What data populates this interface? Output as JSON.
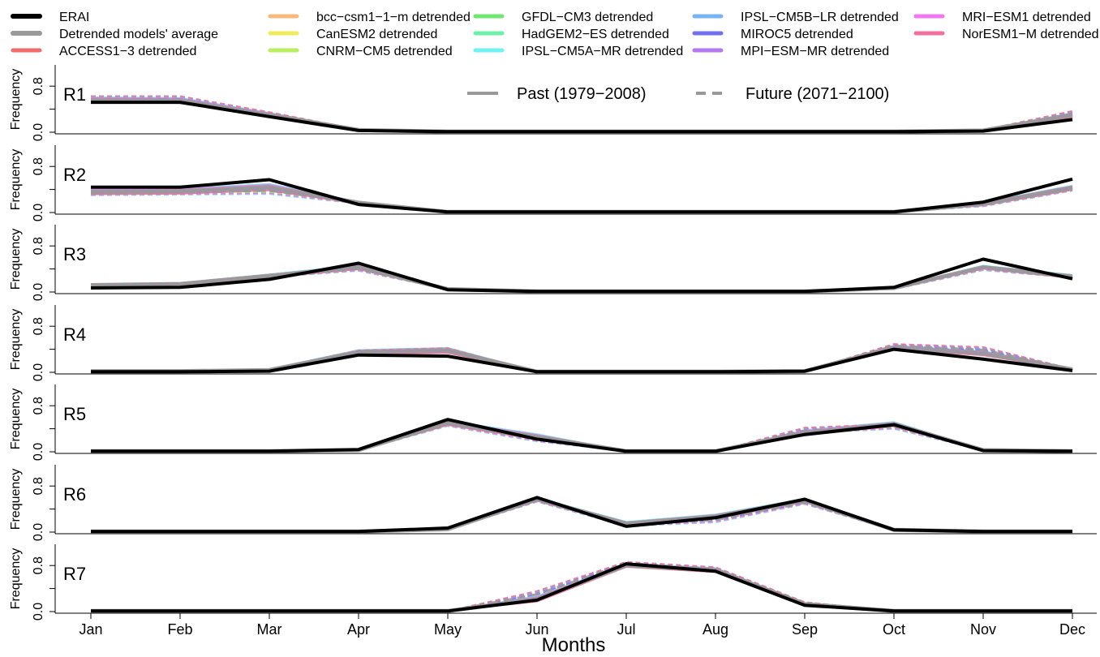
{
  "chart_data": {
    "type": "line",
    "xlabel": "Months",
    "ylabel": "Frequency",
    "x": [
      "Jan",
      "Feb",
      "Mar",
      "Apr",
      "May",
      "Jun",
      "Jul",
      "Aug",
      "Sep",
      "Oct",
      "Nov",
      "Dec"
    ],
    "ylim": [
      0,
      1
    ],
    "yticks": [
      "0.0",
      "0.8"
    ],
    "style_legend": [
      {
        "label": "Past (1979−2008)",
        "style": "solid"
      },
      {
        "label": "Future (2071−2100)",
        "style": "dashed"
      }
    ],
    "legend": [
      {
        "name": "ERAI",
        "color": "#000000"
      },
      {
        "name": "Detrended models' average",
        "color": "#999999"
      },
      {
        "name": "ACCESS1−3 detrended",
        "color": "#f26b6b"
      },
      {
        "name": "bcc−csm1−1−m detrended",
        "color": "#f5b97a"
      },
      {
        "name": "CanESM2 detrended",
        "color": "#f2ec5a"
      },
      {
        "name": "CNRM−CM5 detrended",
        "color": "#b8f060"
      },
      {
        "name": "GFDL−CM3 detrended",
        "color": "#6ee86e"
      },
      {
        "name": "HadGEM2−ES detrended",
        "color": "#6ef0a8"
      },
      {
        "name": "IPSL−CM5A−MR detrended",
        "color": "#70f2f2"
      },
      {
        "name": "IPSL−CM5B−LR detrended",
        "color": "#78b4f5"
      },
      {
        "name": "MIROC5 detrended",
        "color": "#7070f0"
      },
      {
        "name": "MPI−ESM−MR detrended",
        "color": "#b478f0"
      },
      {
        "name": "MRI−ESM1 detrended",
        "color": "#f275f2"
      },
      {
        "name": "NorESM1−M detrended",
        "color": "#f2709e"
      }
    ],
    "panels": [
      {
        "label": "R1",
        "erai": [
          0.52,
          0.52,
          0.27,
          0.03,
          0.01,
          0.01,
          0.01,
          0.01,
          0.01,
          0.01,
          0.02,
          0.22
        ],
        "average": [
          0.56,
          0.55,
          0.3,
          0.04,
          0.01,
          0.01,
          0.01,
          0.01,
          0.01,
          0.01,
          0.03,
          0.3
        ],
        "model_past_spread": [
          0.1,
          0.1,
          0.08,
          0.02,
          0,
          0,
          0,
          0,
          0,
          0,
          0.02,
          0.08
        ],
        "model_future_spread": [
          0.14,
          0.14,
          0.1,
          0.02,
          0,
          0,
          0,
          0,
          0,
          0,
          0.02,
          0.12
        ],
        "future_shift": [
          0.01,
          0.02,
          0.01,
          0,
          0,
          0,
          0,
          0,
          0,
          0,
          0,
          0.02
        ]
      },
      {
        "label": "R2",
        "erai": [
          0.44,
          0.44,
          0.57,
          0.14,
          0.01,
          0.01,
          0.01,
          0.01,
          0.01,
          0.01,
          0.18,
          0.58
        ],
        "average": [
          0.36,
          0.37,
          0.44,
          0.17,
          0.01,
          0.01,
          0.01,
          0.01,
          0.01,
          0.01,
          0.15,
          0.43
        ],
        "model_past_spread": [
          0.1,
          0.1,
          0.12,
          0.04,
          0,
          0,
          0,
          0,
          0,
          0,
          0.06,
          0.08
        ],
        "model_future_spread": [
          0.1,
          0.1,
          0.14,
          0.04,
          0,
          0,
          0,
          0,
          0,
          0,
          0.06,
          0.08
        ],
        "future_shift": [
          -0.02,
          -0.02,
          -0.06,
          0,
          0,
          0,
          0,
          0,
          0,
          0,
          -0.02,
          -0.02
        ]
      },
      {
        "label": "R3",
        "erai": [
          0.07,
          0.08,
          0.22,
          0.5,
          0.04,
          0.01,
          0.01,
          0.01,
          0.01,
          0.08,
          0.57,
          0.23
        ],
        "average": [
          0.12,
          0.14,
          0.28,
          0.43,
          0.05,
          0.01,
          0.01,
          0.01,
          0.01,
          0.07,
          0.43,
          0.27
        ],
        "model_past_spread": [
          0.04,
          0.04,
          0.06,
          0.08,
          0.01,
          0,
          0,
          0,
          0,
          0.03,
          0.06,
          0.06
        ],
        "model_future_spread": [
          0.04,
          0.04,
          0.06,
          0.08,
          0.01,
          0,
          0,
          0,
          0,
          0.03,
          0.08,
          0.06
        ],
        "future_shift": [
          0,
          0,
          0,
          -0.03,
          0,
          0,
          0,
          0,
          0,
          -0.01,
          -0.02,
          0
        ]
      },
      {
        "label": "R4",
        "erai": [
          0.01,
          0.01,
          0.02,
          0.3,
          0.28,
          0.01,
          0.01,
          0.01,
          0.02,
          0.4,
          0.23,
          0.03
        ],
        "average": [
          0.02,
          0.02,
          0.04,
          0.35,
          0.38,
          0.01,
          0.01,
          0.01,
          0.02,
          0.43,
          0.33,
          0.05
        ],
        "model_past_spread": [
          0.01,
          0.01,
          0.03,
          0.08,
          0.1,
          0,
          0,
          0,
          0,
          0.07,
          0.08,
          0.02
        ],
        "model_future_spread": [
          0.01,
          0.01,
          0.03,
          0.08,
          0.1,
          0,
          0,
          0,
          0,
          0.08,
          0.12,
          0.02
        ],
        "future_shift": [
          0,
          0,
          0,
          0,
          0,
          0,
          0,
          0,
          0,
          0.03,
          0.06,
          0
        ]
      },
      {
        "label": "R5",
        "erai": [
          0.01,
          0.01,
          0.01,
          0.04,
          0.56,
          0.22,
          0.01,
          0.01,
          0.3,
          0.47,
          0.02,
          0.01
        ],
        "average": [
          0.01,
          0.01,
          0.01,
          0.03,
          0.5,
          0.26,
          0.01,
          0.01,
          0.33,
          0.48,
          0.03,
          0.01
        ],
        "model_past_spread": [
          0,
          0,
          0,
          0.02,
          0.08,
          0.1,
          0,
          0,
          0.1,
          0.08,
          0.01,
          0
        ],
        "model_future_spread": [
          0,
          0,
          0,
          0.02,
          0.08,
          0.1,
          0,
          0,
          0.12,
          0.1,
          0.01,
          0
        ],
        "future_shift": [
          0,
          0,
          0,
          0,
          -0.02,
          -0.04,
          0,
          0,
          0.04,
          -0.04,
          0,
          0
        ]
      },
      {
        "label": "R6",
        "erai": [
          0.01,
          0.01,
          0.01,
          0.01,
          0.07,
          0.6,
          0.1,
          0.25,
          0.57,
          0.04,
          0.01,
          0.01
        ],
        "average": [
          0.01,
          0.01,
          0.01,
          0.01,
          0.05,
          0.57,
          0.15,
          0.27,
          0.55,
          0.04,
          0.01,
          0.01
        ],
        "model_past_spread": [
          0,
          0,
          0,
          0,
          0.02,
          0.06,
          0.06,
          0.08,
          0.06,
          0.02,
          0,
          0
        ],
        "model_future_spread": [
          0,
          0,
          0,
          0,
          0.02,
          0.06,
          0.06,
          0.1,
          0.06,
          0.02,
          0,
          0
        ],
        "future_shift": [
          0,
          0,
          0,
          0,
          0,
          -0.02,
          -0.02,
          -0.06,
          -0.04,
          0,
          0,
          0
        ]
      },
      {
        "label": "R7",
        "erai": [
          0.01,
          0.01,
          0.01,
          0.01,
          0.01,
          0.2,
          0.83,
          0.7,
          0.11,
          0.01,
          0.01,
          0.01
        ],
        "average": [
          0.01,
          0.01,
          0.01,
          0.01,
          0.01,
          0.22,
          0.8,
          0.72,
          0.13,
          0.01,
          0.01,
          0.01
        ],
        "model_past_spread": [
          0,
          0,
          0,
          0,
          0,
          0.1,
          0.06,
          0.08,
          0.04,
          0,
          0,
          0
        ],
        "model_future_spread": [
          0,
          0,
          0,
          0,
          0,
          0.14,
          0.06,
          0.08,
          0.04,
          0,
          0,
          0
        ],
        "future_shift": [
          0,
          0,
          0,
          0,
          0,
          0.08,
          0.04,
          0.02,
          0.02,
          0,
          0,
          0
        ]
      }
    ]
  }
}
